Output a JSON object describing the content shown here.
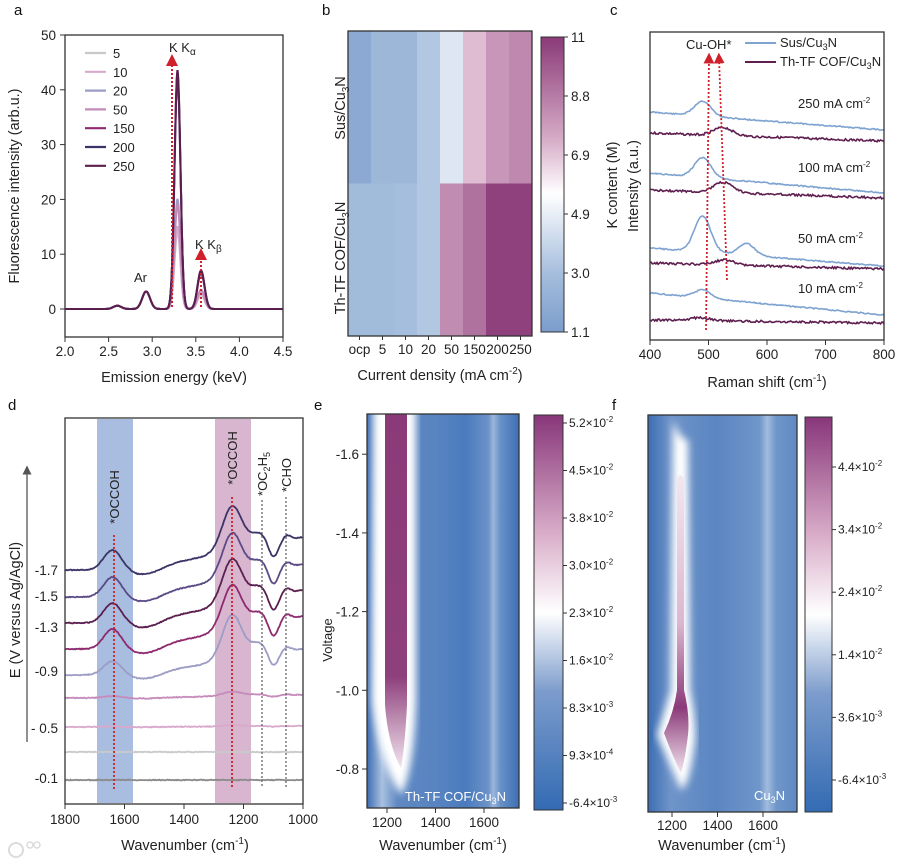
{
  "panel_letters": [
    "a",
    "b",
    "c",
    "d",
    "e",
    "f"
  ],
  "watermark": "大数跨境",
  "colors": {
    "annotation_red": "#d0202a",
    "band_blue": "#a9bde0",
    "band_pink": "#d9b6cf",
    "map_blue": "#3f70b4",
    "map_magenta": "#8a3a78"
  },
  "chart_data": [
    {
      "id": "a",
      "type": "line",
      "title": "",
      "xlabel": "Emission energy (keV)",
      "ylabel": "Fluorescence intensity (arb.u.)",
      "xlim": [
        2.0,
        4.5
      ],
      "ylim": [
        -5,
        50
      ],
      "xticks": [
        "2.0",
        "2.5",
        "3.0",
        "3.5",
        "4.0",
        "4.5"
      ],
      "yticks": [
        "0",
        "10",
        "20",
        "30",
        "40",
        "50"
      ],
      "legend_position": "top-left",
      "annotations": {
        "ka": [
          "K K",
          "α"
        ],
        "kb": [
          "K K",
          "β"
        ],
        "ar": "Ar"
      },
      "common_peaks": [
        {
          "x": 2.6,
          "y": 0.6
        },
        {
          "x": 2.93,
          "y": 3.2
        }
      ],
      "series": [
        {
          "name": "5",
          "color": "#c9c9cb",
          "ka": 14.0,
          "kb": 2.5
        },
        {
          "name": "10",
          "color": "#d9a9cd",
          "ka": 15.0,
          "kb": 3.0
        },
        {
          "name": "20",
          "color": "#9c9cc6",
          "ka": 20.0,
          "kb": 3.5
        },
        {
          "name": "50",
          "color": "#c28bb8",
          "ka": 19.0,
          "kb": 3.5
        },
        {
          "name": "150",
          "color": "#8e2a6e",
          "ka": 42.0,
          "kb": 6.5
        },
        {
          "name": "200",
          "color": "#3b3466",
          "ka": 43.0,
          "kb": 7.0
        },
        {
          "name": "250",
          "color": "#5b1f4f",
          "ka": 43.5,
          "kb": 7.0
        }
      ],
      "ka_energy": 3.29,
      "kb_energy": 3.56
    },
    {
      "id": "b",
      "type": "heatmap",
      "xlabel": [
        "Current density (mA cm",
        "-2",
        ")"
      ],
      "colorbar_label": "K content (M)",
      "categories": [
        "ocp",
        "5",
        "10",
        "20",
        "50",
        "150",
        "200",
        "250"
      ],
      "rows": [
        {
          "label": [
            "Sus/Cu",
            "3",
            "N"
          ],
          "values": [
            1.8,
            2.6,
            2.6,
            3.4,
            4.8,
            7.2,
            8.2,
            8.6
          ]
        },
        {
          "label": [
            "Th-TF COF/Cu",
            "3",
            "N"
          ],
          "values": [
            2.8,
            2.8,
            3.0,
            3.4,
            8.5,
            9.3,
            10.8,
            10.8
          ]
        }
      ],
      "colorbar_ticks": [
        "11",
        "8.8",
        "6.9",
        "4.9",
        "3.0",
        "1.1"
      ],
      "range": [
        1.1,
        11
      ]
    },
    {
      "id": "c",
      "type": "line",
      "xlabel": [
        "Raman shift (cm",
        "-1",
        ")"
      ],
      "ylabel": "Intensity (a.u.)",
      "xlim": [
        400,
        800
      ],
      "xticks": [
        "400",
        "500",
        "600",
        "700",
        "800"
      ],
      "legend": [
        {
          "name": [
            "Sus/Cu",
            "3",
            "N"
          ],
          "color": "#7ea3d0"
        },
        {
          "name": [
            "Th-TF COF/Cu",
            "3",
            "N"
          ],
          "color": "#5e1e4f"
        }
      ],
      "annotation": "Cu-OH*",
      "peak_markers_cm1": [
        490,
        528
      ],
      "groups": [
        {
          "label": [
            "250 mA cm",
            "-2"
          ],
          "sus_peaks": [
            [
              490,
              15
            ]
          ],
          "cof_peaks": [
            [
              525,
              8
            ]
          ]
        },
        {
          "label": [
            "100 mA cm",
            "-2"
          ],
          "sus_peaks": [
            [
              490,
              20
            ]
          ],
          "cof_peaks": [
            [
              525,
              10
            ]
          ]
        },
        {
          "label": [
            "50 mA cm",
            "-2"
          ],
          "sus_peaks": [
            [
              490,
              36
            ],
            [
              565,
              12
            ]
          ],
          "cof_peaks": [
            [
              528,
              5
            ]
          ]
        },
        {
          "label": [
            "10 mA cm",
            "-2"
          ],
          "sus_peaks": [
            [
              490,
              8
            ]
          ],
          "cof_peaks": [
            [
              485,
              3
            ]
          ]
        }
      ]
    },
    {
      "id": "d",
      "type": "line",
      "xlabel": [
        "Wavenumber (cm",
        "-1",
        ")"
      ],
      "ylabel": "E (V versus Ag/AgCl)",
      "xlim": [
        1800,
        1000
      ],
      "xticks": [
        "1800",
        "1600",
        "1400",
        "1200",
        "1000"
      ],
      "potential_labels": [
        "-1.7",
        "-1.5",
        "-1.3",
        "-0.9",
        "- 0.5",
        "-0.1"
      ],
      "bands": [
        {
          "from": 1690,
          "to": 1570,
          "label": "*OCCOH",
          "center": 1635
        },
        {
          "from": 1300,
          "to": 1180,
          "label": "*OCCOH",
          "center": 1238
        }
      ],
      "markers": [
        {
          "x": 1140,
          "label": [
            "*OC",
            "2",
            "H",
            "5"
          ]
        },
        {
          "x": 1060,
          "label": "*CHO"
        }
      ],
      "series_scale": [
        1.0,
        1.0,
        1.0,
        1.0,
        0.8,
        0.1,
        0.03,
        0.0,
        0.0
      ],
      "series_colors": [
        "#3b3466",
        "#5a4a86",
        "#5b1f4f",
        "#8e2a6e",
        "#9c9cc6",
        "#c58cbb",
        "#d9a9cd",
        "#c8cacc",
        "#8a8a8a"
      ]
    },
    {
      "id": "e",
      "type": "heatmap",
      "xlabel": [
        "Wavenumber (cm",
        "-1",
        ")"
      ],
      "ylabel": "Voltage",
      "xticks": [
        "1200",
        "1400",
        "1600"
      ],
      "yticks": [
        "-1.6",
        "-1.4",
        "-1.2",
        "-1.0",
        "-0.8"
      ],
      "sample": [
        "Th-TF COF/Cu",
        "3",
        "N"
      ],
      "colorbar_ticks": [
        [
          "5.2×10",
          "-2"
        ],
        [
          "4.5×10",
          "-2"
        ],
        [
          "3.8×10",
          "-2"
        ],
        [
          "3.0×10",
          "-2"
        ],
        [
          "2.3×10",
          "-2"
        ],
        [
          "1.6×10",
          "-2"
        ],
        [
          "8.3×10",
          "-3"
        ],
        [
          "9.3×10",
          "-4"
        ],
        [
          "-6.4×10",
          "-3"
        ]
      ],
      "hotspot": {
        "wavenumber": 1240,
        "voltage_range": [
          -1.7,
          -0.8
        ]
      }
    },
    {
      "id": "f",
      "type": "heatmap",
      "xlabel": [
        "Wavenumber (cm",
        "-1",
        ")"
      ],
      "xticks": [
        "1200",
        "1400",
        "1600"
      ],
      "sample": [
        "Cu",
        "3",
        "N"
      ],
      "colorbar_ticks": [
        [
          "4.4×10",
          "-2"
        ],
        [
          "3.4×10",
          "-2"
        ],
        [
          "2.4×10",
          "-2"
        ],
        [
          "1.4×10",
          "-2"
        ],
        [
          "3.6×10",
          "-3"
        ],
        [
          "-6.4×10",
          "-3"
        ]
      ],
      "hotspot": {
        "wavenumber": 1240,
        "voltage_range": [
          -1.45,
          -0.75
        ]
      }
    }
  ]
}
